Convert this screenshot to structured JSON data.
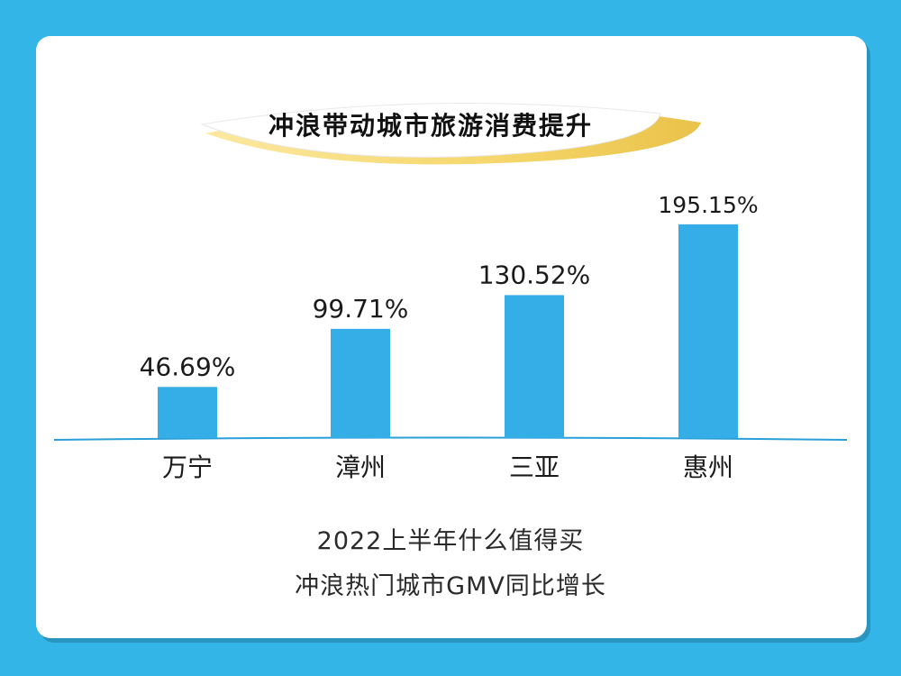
{
  "title": "冲浪带动城市旅游消费提升",
  "caption": {
    "line1": "2022上半年什么值得买",
    "line2": "冲浪热门城市GMV同比增长"
  },
  "colors": {
    "background": "#33b5e8",
    "bar": "#35aee8",
    "baseline": "#2a9fd8"
  },
  "chart_data": {
    "type": "bar",
    "title": "冲浪带动城市旅游消费提升",
    "categories": [
      "万宁",
      "漳州",
      "三亚",
      "惠州"
    ],
    "values": [
      46.69,
      99.71,
      130.52,
      195.15
    ],
    "value_labels": [
      "46.69%",
      "99.71%",
      "130.52%",
      "195.15%"
    ],
    "unit": "%",
    "ylim": [
      0,
      200
    ],
    "grid": false,
    "legend": "none"
  }
}
